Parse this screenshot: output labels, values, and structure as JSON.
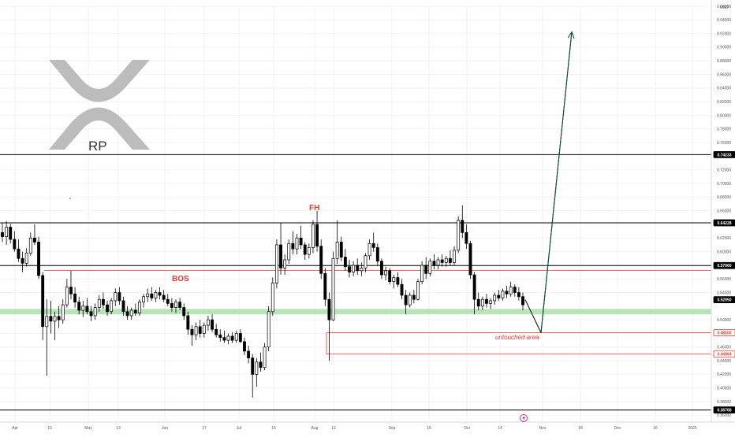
{
  "app": {
    "currency": "USD",
    "logo_text": "RP"
  },
  "colors": {
    "up": "#ffffff",
    "down": "#000000",
    "candle_border": "#000000",
    "green_zone": "#b9e3b9",
    "red_line": "#e53935",
    "arrow": "#0f5132",
    "annotation": "#e53935",
    "grid": "#f2f2f2",
    "logo": "#bcbcbc"
  },
  "chart_data": {
    "type": "candlestick",
    "ylim": [
      0.35,
      0.96
    ],
    "y_ticks": [
      "0.96000",
      "0.94000",
      "0.92000",
      "0.90000",
      "0.88000",
      "0.86000",
      "0.84000",
      "0.82000",
      "0.80000",
      "0.78000",
      "0.76000",
      "0.72000",
      "0.70000",
      "0.68000",
      "0.66000",
      "0.62000",
      "0.60000",
      "0.58000",
      "0.56000",
      "0.54000",
      "0.50000",
      "0.48000",
      "0.46000",
      "0.44000",
      "0.42000",
      "0.40000",
      "0.38000",
      "0.36000"
    ],
    "x_ticks": [
      "Apr",
      "15",
      "May",
      "13",
      "Jun",
      "17",
      "Jul",
      "15",
      "Aug",
      "12",
      "Sep",
      "16",
      "Oct",
      "14",
      "Nov",
      "18",
      "Dec",
      "16",
      "2025"
    ],
    "price_labels": [
      {
        "value": 0.74233,
        "text": "0.74233",
        "style": "black"
      },
      {
        "value": 0.64228,
        "text": "0.64228",
        "style": "black"
      },
      {
        "value": 0.5796,
        "text": "0.57960",
        "style": "black"
      },
      {
        "value": 0.5295,
        "text": "0.52950",
        "style": "black"
      },
      {
        "value": 0.481,
        "text": "0.48100",
        "style": "red"
      },
      {
        "value": 0.44964,
        "text": "0.44964",
        "style": "red"
      },
      {
        "value": 0.36768,
        "text": "0.36768",
        "style": "black"
      }
    ],
    "horizontal_lines": [
      {
        "name": "resistance-high",
        "value": 0.74233,
        "color": "#000000"
      },
      {
        "name": "resistance-fh",
        "value": 0.64228,
        "color": "#000000"
      },
      {
        "name": "resistance-mid",
        "value": 0.5796,
        "color": "#000000"
      },
      {
        "name": "bos-line",
        "value": 0.5725,
        "color": "#e53935"
      },
      {
        "name": "untouched-line-1",
        "value": 0.481,
        "color": "#e53935"
      },
      {
        "name": "untouched-line-2",
        "value": 0.44964,
        "color": "#e53935"
      },
      {
        "name": "support-low",
        "value": 0.36768,
        "color": "#000000"
      }
    ],
    "zone": {
      "low": 0.508,
      "high": 0.516
    },
    "candles": [
      {
        "o": 0.628,
        "h": 0.642,
        "l": 0.614,
        "c": 0.622
      },
      {
        "o": 0.622,
        "h": 0.645,
        "l": 0.61,
        "c": 0.636
      },
      {
        "o": 0.636,
        "h": 0.641,
        "l": 0.612,
        "c": 0.618
      },
      {
        "o": 0.618,
        "h": 0.63,
        "l": 0.6,
        "c": 0.604
      },
      {
        "o": 0.604,
        "h": 0.618,
        "l": 0.585,
        "c": 0.59
      },
      {
        "o": 0.59,
        "h": 0.6,
        "l": 0.57,
        "c": 0.583
      },
      {
        "o": 0.583,
        "h": 0.605,
        "l": 0.578,
        "c": 0.598
      },
      {
        "o": 0.598,
        "h": 0.628,
        "l": 0.594,
        "c": 0.62
      },
      {
        "o": 0.62,
        "h": 0.64,
        "l": 0.61,
        "c": 0.614
      },
      {
        "o": 0.614,
        "h": 0.622,
        "l": 0.56,
        "c": 0.565
      },
      {
        "o": 0.565,
        "h": 0.57,
        "l": 0.47,
        "c": 0.49
      },
      {
        "o": 0.49,
        "h": 0.53,
        "l": 0.418,
        "c": 0.505
      },
      {
        "o": 0.505,
        "h": 0.528,
        "l": 0.48,
        "c": 0.498
      },
      {
        "o": 0.498,
        "h": 0.512,
        "l": 0.47,
        "c": 0.505
      },
      {
        "o": 0.505,
        "h": 0.52,
        "l": 0.488,
        "c": 0.5
      },
      {
        "o": 0.5,
        "h": 0.53,
        "l": 0.494,
        "c": 0.522
      },
      {
        "o": 0.522,
        "h": 0.56,
        "l": 0.518,
        "c": 0.548
      },
      {
        "o": 0.548,
        "h": 0.572,
        "l": 0.53,
        "c": 0.538
      },
      {
        "o": 0.538,
        "h": 0.548,
        "l": 0.518,
        "c": 0.526
      },
      {
        "o": 0.526,
        "h": 0.534,
        "l": 0.508,
        "c": 0.514
      },
      {
        "o": 0.514,
        "h": 0.528,
        "l": 0.504,
        "c": 0.52
      },
      {
        "o": 0.52,
        "h": 0.532,
        "l": 0.508,
        "c": 0.512
      },
      {
        "o": 0.512,
        "h": 0.52,
        "l": 0.498,
        "c": 0.506
      },
      {
        "o": 0.506,
        "h": 0.524,
        "l": 0.5,
        "c": 0.518
      },
      {
        "o": 0.518,
        "h": 0.536,
        "l": 0.512,
        "c": 0.53
      },
      {
        "o": 0.53,
        "h": 0.54,
        "l": 0.516,
        "c": 0.522
      },
      {
        "o": 0.522,
        "h": 0.528,
        "l": 0.506,
        "c": 0.512
      },
      {
        "o": 0.512,
        "h": 0.532,
        "l": 0.508,
        "c": 0.528
      },
      {
        "o": 0.528,
        "h": 0.546,
        "l": 0.52,
        "c": 0.54
      },
      {
        "o": 0.54,
        "h": 0.548,
        "l": 0.522,
        "c": 0.528
      },
      {
        "o": 0.528,
        "h": 0.534,
        "l": 0.506,
        "c": 0.512
      },
      {
        "o": 0.512,
        "h": 0.52,
        "l": 0.5,
        "c": 0.506
      },
      {
        "o": 0.506,
        "h": 0.518,
        "l": 0.5,
        "c": 0.514
      },
      {
        "o": 0.514,
        "h": 0.524,
        "l": 0.506,
        "c": 0.51
      },
      {
        "o": 0.51,
        "h": 0.53,
        "l": 0.506,
        "c": 0.526
      },
      {
        "o": 0.526,
        "h": 0.538,
        "l": 0.518,
        "c": 0.534
      },
      {
        "o": 0.534,
        "h": 0.546,
        "l": 0.526,
        "c": 0.538
      },
      {
        "o": 0.538,
        "h": 0.548,
        "l": 0.528,
        "c": 0.532
      },
      {
        "o": 0.532,
        "h": 0.544,
        "l": 0.526,
        "c": 0.54
      },
      {
        "o": 0.54,
        "h": 0.548,
        "l": 0.53,
        "c": 0.536
      },
      {
        "o": 0.536,
        "h": 0.544,
        "l": 0.526,
        "c": 0.53
      },
      {
        "o": 0.53,
        "h": 0.538,
        "l": 0.52,
        "c": 0.524
      },
      {
        "o": 0.524,
        "h": 0.532,
        "l": 0.512,
        "c": 0.518
      },
      {
        "o": 0.518,
        "h": 0.53,
        "l": 0.51,
        "c": 0.526
      },
      {
        "o": 0.526,
        "h": 0.532,
        "l": 0.514,
        "c": 0.518
      },
      {
        "o": 0.518,
        "h": 0.524,
        "l": 0.5,
        "c": 0.506
      },
      {
        "o": 0.506,
        "h": 0.512,
        "l": 0.478,
        "c": 0.486
      },
      {
        "o": 0.486,
        "h": 0.492,
        "l": 0.462,
        "c": 0.478
      },
      {
        "o": 0.478,
        "h": 0.496,
        "l": 0.47,
        "c": 0.49
      },
      {
        "o": 0.49,
        "h": 0.5,
        "l": 0.474,
        "c": 0.48
      },
      {
        "o": 0.48,
        "h": 0.496,
        "l": 0.474,
        "c": 0.492
      },
      {
        "o": 0.492,
        "h": 0.506,
        "l": 0.484,
        "c": 0.5
      },
      {
        "o": 0.5,
        "h": 0.508,
        "l": 0.482,
        "c": 0.486
      },
      {
        "o": 0.486,
        "h": 0.494,
        "l": 0.474,
        "c": 0.478
      },
      {
        "o": 0.478,
        "h": 0.486,
        "l": 0.468,
        "c": 0.474
      },
      {
        "o": 0.474,
        "h": 0.484,
        "l": 0.466,
        "c": 0.47
      },
      {
        "o": 0.47,
        "h": 0.48,
        "l": 0.464,
        "c": 0.476
      },
      {
        "o": 0.476,
        "h": 0.482,
        "l": 0.466,
        "c": 0.47
      },
      {
        "o": 0.47,
        "h": 0.484,
        "l": 0.466,
        "c": 0.48
      },
      {
        "o": 0.48,
        "h": 0.486,
        "l": 0.466,
        "c": 0.468
      },
      {
        "o": 0.468,
        "h": 0.474,
        "l": 0.448,
        "c": 0.454
      },
      {
        "o": 0.454,
        "h": 0.462,
        "l": 0.436,
        "c": 0.444
      },
      {
        "o": 0.444,
        "h": 0.45,
        "l": 0.386,
        "c": 0.42
      },
      {
        "o": 0.42,
        "h": 0.444,
        "l": 0.402,
        "c": 0.438
      },
      {
        "o": 0.438,
        "h": 0.452,
        "l": 0.424,
        "c": 0.43
      },
      {
        "o": 0.43,
        "h": 0.466,
        "l": 0.426,
        "c": 0.46
      },
      {
        "o": 0.46,
        "h": 0.52,
        "l": 0.454,
        "c": 0.512
      },
      {
        "o": 0.512,
        "h": 0.562,
        "l": 0.506,
        "c": 0.554
      },
      {
        "o": 0.554,
        "h": 0.618,
        "l": 0.546,
        "c": 0.61
      },
      {
        "o": 0.61,
        "h": 0.642,
        "l": 0.566,
        "c": 0.576
      },
      {
        "o": 0.576,
        "h": 0.596,
        "l": 0.566,
        "c": 0.588
      },
      {
        "o": 0.588,
        "h": 0.618,
        "l": 0.582,
        "c": 0.612
      },
      {
        "o": 0.612,
        "h": 0.63,
        "l": 0.596,
        "c": 0.604
      },
      {
        "o": 0.604,
        "h": 0.626,
        "l": 0.596,
        "c": 0.62
      },
      {
        "o": 0.62,
        "h": 0.638,
        "l": 0.604,
        "c": 0.61
      },
      {
        "o": 0.61,
        "h": 0.614,
        "l": 0.588,
        "c": 0.596
      },
      {
        "o": 0.596,
        "h": 0.612,
        "l": 0.59,
        "c": 0.606
      },
      {
        "o": 0.606,
        "h": 0.646,
        "l": 0.598,
        "c": 0.64
      },
      {
        "o": 0.64,
        "h": 0.66,
        "l": 0.6,
        "c": 0.608
      },
      {
        "o": 0.608,
        "h": 0.618,
        "l": 0.56,
        "c": 0.568
      },
      {
        "o": 0.568,
        "h": 0.576,
        "l": 0.52,
        "c": 0.53
      },
      {
        "o": 0.53,
        "h": 0.54,
        "l": 0.44,
        "c": 0.5
      },
      {
        "o": 0.5,
        "h": 0.6,
        "l": 0.498,
        "c": 0.59
      },
      {
        "o": 0.59,
        "h": 0.646,
        "l": 0.582,
        "c": 0.614
      },
      {
        "o": 0.614,
        "h": 0.622,
        "l": 0.586,
        "c": 0.592
      },
      {
        "o": 0.592,
        "h": 0.604,
        "l": 0.572,
        "c": 0.578
      },
      {
        "o": 0.578,
        "h": 0.588,
        "l": 0.562,
        "c": 0.57
      },
      {
        "o": 0.57,
        "h": 0.586,
        "l": 0.564,
        "c": 0.58
      },
      {
        "o": 0.58,
        "h": 0.59,
        "l": 0.566,
        "c": 0.572
      },
      {
        "o": 0.572,
        "h": 0.584,
        "l": 0.564,
        "c": 0.576
      },
      {
        "o": 0.576,
        "h": 0.598,
        "l": 0.57,
        "c": 0.594
      },
      {
        "o": 0.594,
        "h": 0.618,
        "l": 0.588,
        "c": 0.612
      },
      {
        "o": 0.612,
        "h": 0.628,
        "l": 0.6,
        "c": 0.606
      },
      {
        "o": 0.606,
        "h": 0.612,
        "l": 0.58,
        "c": 0.586
      },
      {
        "o": 0.586,
        "h": 0.59,
        "l": 0.56,
        "c": 0.566
      },
      {
        "o": 0.566,
        "h": 0.578,
        "l": 0.558,
        "c": 0.572
      },
      {
        "o": 0.572,
        "h": 0.576,
        "l": 0.552,
        "c": 0.556
      },
      {
        "o": 0.556,
        "h": 0.566,
        "l": 0.546,
        "c": 0.562
      },
      {
        "o": 0.562,
        "h": 0.57,
        "l": 0.548,
        "c": 0.552
      },
      {
        "o": 0.552,
        "h": 0.56,
        "l": 0.53,
        "c": 0.536
      },
      {
        "o": 0.536,
        "h": 0.544,
        "l": 0.508,
        "c": 0.522
      },
      {
        "o": 0.522,
        "h": 0.54,
        "l": 0.518,
        "c": 0.536
      },
      {
        "o": 0.536,
        "h": 0.544,
        "l": 0.524,
        "c": 0.53
      },
      {
        "o": 0.53,
        "h": 0.56,
        "l": 0.528,
        "c": 0.556
      },
      {
        "o": 0.556,
        "h": 0.586,
        "l": 0.552,
        "c": 0.58
      },
      {
        "o": 0.58,
        "h": 0.592,
        "l": 0.56,
        "c": 0.568
      },
      {
        "o": 0.568,
        "h": 0.59,
        "l": 0.564,
        "c": 0.586
      },
      {
        "o": 0.586,
        "h": 0.596,
        "l": 0.574,
        "c": 0.58
      },
      {
        "o": 0.58,
        "h": 0.592,
        "l": 0.574,
        "c": 0.588
      },
      {
        "o": 0.588,
        "h": 0.596,
        "l": 0.578,
        "c": 0.584
      },
      {
        "o": 0.584,
        "h": 0.594,
        "l": 0.578,
        "c": 0.59
      },
      {
        "o": 0.59,
        "h": 0.602,
        "l": 0.58,
        "c": 0.584
      },
      {
        "o": 0.584,
        "h": 0.608,
        "l": 0.58,
        "c": 0.602
      },
      {
        "o": 0.602,
        "h": 0.652,
        "l": 0.598,
        "c": 0.646
      },
      {
        "o": 0.646,
        "h": 0.668,
        "l": 0.62,
        "c": 0.628
      },
      {
        "o": 0.628,
        "h": 0.64,
        "l": 0.604,
        "c": 0.612
      },
      {
        "o": 0.612,
        "h": 0.616,
        "l": 0.56,
        "c": 0.566
      },
      {
        "o": 0.566,
        "h": 0.57,
        "l": 0.508,
        "c": 0.53
      },
      {
        "o": 0.53,
        "h": 0.54,
        "l": 0.514,
        "c": 0.52
      },
      {
        "o": 0.52,
        "h": 0.534,
        "l": 0.514,
        "c": 0.53
      },
      {
        "o": 0.53,
        "h": 0.538,
        "l": 0.518,
        "c": 0.524
      },
      {
        "o": 0.524,
        "h": 0.532,
        "l": 0.516,
        "c": 0.528
      },
      {
        "o": 0.528,
        "h": 0.54,
        "l": 0.522,
        "c": 0.536
      },
      {
        "o": 0.536,
        "h": 0.544,
        "l": 0.528,
        "c": 0.532
      },
      {
        "o": 0.532,
        "h": 0.546,
        "l": 0.528,
        "c": 0.542
      },
      {
        "o": 0.542,
        "h": 0.55,
        "l": 0.532,
        "c": 0.538
      },
      {
        "o": 0.538,
        "h": 0.556,
        "l": 0.534,
        "c": 0.548
      },
      {
        "o": 0.548,
        "h": 0.552,
        "l": 0.534,
        "c": 0.54
      },
      {
        "o": 0.54,
        "h": 0.548,
        "l": 0.528,
        "c": 0.534
      },
      {
        "o": 0.534,
        "h": 0.54,
        "l": 0.514,
        "c": 0.522
      }
    ],
    "projection": [
      {
        "x": 0.0,
        "y": 0.5295
      },
      {
        "x": 1.0,
        "y": 0.481
      },
      {
        "x": 2.9,
        "y": 0.9225
      }
    ],
    "annotations": [
      {
        "name": "bos-label",
        "text": "BOS"
      },
      {
        "name": "fh-label",
        "text": "FH"
      },
      {
        "name": "untouched-label",
        "text": "untouched area"
      }
    ]
  }
}
